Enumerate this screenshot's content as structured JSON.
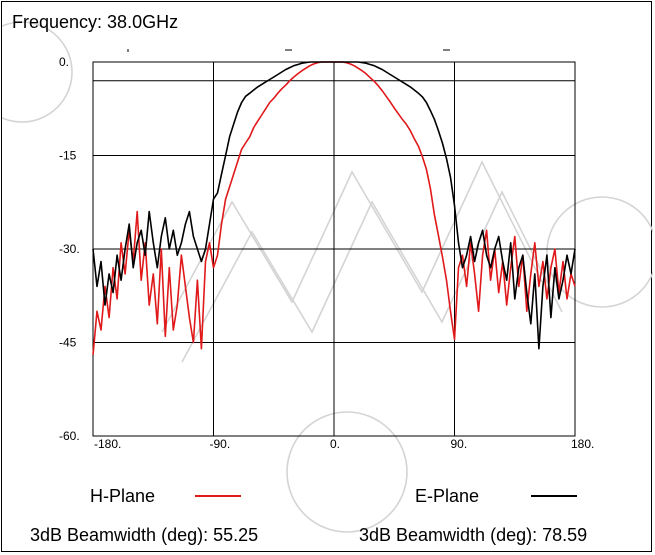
{
  "header": {
    "frequency_label": "Frequency: 38.0GHz"
  },
  "legend": [
    {
      "label": "H-Plane",
      "color": "#e0191b"
    },
    {
      "label": "E-Plane",
      "color": "#000000"
    }
  ],
  "beamwidth": [
    {
      "text": "3dB Beamwidth (deg): 55.25"
    },
    {
      "text": "3dB Beamwidth (deg): 78.59"
    }
  ],
  "chart_data": {
    "type": "line",
    "xlim": [
      -180,
      180
    ],
    "ylim": [
      -60,
      0
    ],
    "xticks": [
      {
        "value": -180,
        "label": "-180."
      },
      {
        "value": -90,
        "label": "-90."
      },
      {
        "value": 0,
        "label": "0."
      },
      {
        "value": 90,
        "label": "90."
      },
      {
        "value": 180,
        "label": "180."
      }
    ],
    "yticks": [
      {
        "value": 0,
        "label": "0."
      },
      {
        "value": -15,
        "label": "-15"
      },
      {
        "value": -30,
        "label": "-30."
      },
      {
        "value": -45,
        "label": "-45"
      },
      {
        "value": -60,
        "label": "-60."
      }
    ],
    "reference_line": -3,
    "grid": true,
    "series": [
      {
        "name": "H-Plane",
        "color": "#e0191b",
        "x": [
          -180,
          -177,
          -174,
          -171,
          -168,
          -165,
          -162,
          -159,
          -156,
          -153,
          -150,
          -147,
          -144,
          -141,
          -138,
          -135,
          -132,
          -129,
          -126,
          -123,
          -120,
          -117,
          -114,
          -111,
          -108,
          -105,
          -102,
          -99,
          -96,
          -93,
          -90,
          -87,
          -84,
          -81,
          -78,
          -75,
          -72,
          -69,
          -66,
          -63,
          -60,
          -57,
          -54,
          -51,
          -48,
          -45,
          -42,
          -39,
          -36,
          -33,
          -30,
          -27,
          -24,
          -21,
          -18,
          -15,
          -12,
          -9,
          -6,
          -3,
          0,
          3,
          6,
          9,
          12,
          15,
          18,
          21,
          24,
          27,
          30,
          33,
          36,
          39,
          42,
          45,
          48,
          51,
          54,
          57,
          60,
          63,
          66,
          69,
          72,
          75,
          78,
          81,
          84,
          87,
          90,
          93,
          96,
          99,
          102,
          105,
          108,
          111,
          114,
          117,
          120,
          123,
          126,
          129,
          132,
          135,
          138,
          141,
          144,
          147,
          150,
          153,
          156,
          159,
          162,
          165,
          168,
          171,
          174,
          177,
          180
        ],
        "y": [
          -47,
          -40,
          -43,
          -36,
          -41,
          -33,
          -38,
          -29,
          -34,
          -27,
          -32,
          -24,
          -35,
          -29,
          -39,
          -34,
          -42,
          -30,
          -44,
          -33,
          -43,
          -39,
          -31,
          -36,
          -41,
          -45,
          -35,
          -46,
          -32,
          -29,
          -33,
          -31,
          -26,
          -22,
          -20,
          -18,
          -16,
          -14,
          -13,
          -12,
          -10.5,
          -9.5,
          -8.5,
          -7.5,
          -6.5,
          -5.8,
          -5,
          -4.3,
          -3.7,
          -3,
          -2.4,
          -1.9,
          -1.4,
          -1,
          -0.6,
          -0.3,
          -0.1,
          0,
          0,
          0,
          0,
          0,
          0,
          -0.1,
          -0.3,
          -0.6,
          -1,
          -1.4,
          -1.9,
          -2.5,
          -3.1,
          -3.8,
          -4.6,
          -5.5,
          -6.4,
          -7.4,
          -8.3,
          -9.2,
          -10,
          -11,
          -12.3,
          -13.5,
          -15.2,
          -17.2,
          -20.3,
          -24.5,
          -27.8,
          -31.2,
          -35,
          -40,
          -44.5,
          -33,
          -31,
          -36,
          -29,
          -34,
          -40,
          -31,
          -27,
          -35,
          -30,
          -37,
          -32,
          -39,
          -33,
          -28,
          -36,
          -31,
          -40,
          -34,
          -29,
          -36,
          -32,
          -38,
          -33,
          -30,
          -37,
          -32,
          -38,
          -34,
          -36
        ]
      },
      {
        "name": "E-Plane",
        "color": "#000000",
        "x": [
          -180,
          -177,
          -174,
          -171,
          -168,
          -165,
          -162,
          -159,
          -156,
          -153,
          -150,
          -147,
          -144,
          -141,
          -138,
          -135,
          -132,
          -129,
          -126,
          -123,
          -120,
          -117,
          -114,
          -111,
          -108,
          -105,
          -102,
          -99,
          -96,
          -93,
          -90,
          -87,
          -84,
          -81,
          -78,
          -75,
          -72,
          -69,
          -66,
          -63,
          -60,
          -57,
          -54,
          -51,
          -48,
          -45,
          -42,
          -39,
          -36,
          -33,
          -30,
          -27,
          -24,
          -21,
          -18,
          -15,
          -12,
          -9,
          -6,
          -3,
          0,
          3,
          6,
          9,
          12,
          15,
          18,
          21,
          24,
          27,
          30,
          33,
          36,
          39,
          42,
          45,
          48,
          51,
          54,
          57,
          60,
          63,
          66,
          69,
          72,
          75,
          78,
          81,
          84,
          87,
          90,
          93,
          96,
          99,
          102,
          105,
          108,
          111,
          114,
          117,
          120,
          123,
          126,
          129,
          132,
          135,
          138,
          141,
          144,
          147,
          150,
          153,
          156,
          159,
          162,
          165,
          168,
          171,
          174,
          177,
          180
        ],
        "y": [
          -30,
          -36,
          -32,
          -39,
          -34,
          -37,
          -31,
          -35,
          -30,
          -26,
          -33,
          -29,
          -27,
          -31,
          -24,
          -29,
          -33,
          -28,
          -25,
          -30,
          -27,
          -31,
          -29,
          -26,
          -24,
          -28,
          -30,
          -32,
          -30,
          -26,
          -22,
          -21,
          -18,
          -15,
          -12,
          -10,
          -8,
          -6.5,
          -5.5,
          -5,
          -4.5,
          -4,
          -3.6,
          -3.2,
          -2.8,
          -2.4,
          -2,
          -1.6,
          -1.2,
          -0.9,
          -0.6,
          -0.4,
          -0.2,
          -0.1,
          0,
          0,
          0,
          0,
          0,
          0,
          0,
          0,
          0,
          0,
          0,
          0,
          0,
          -0.1,
          -0.2,
          -0.4,
          -0.6,
          -0.9,
          -1.2,
          -1.6,
          -2,
          -2.4,
          -2.8,
          -3.2,
          -3.6,
          -4,
          -4.5,
          -5,
          -5.6,
          -6.5,
          -7.8,
          -9.2,
          -11,
          -13,
          -15.5,
          -18.5,
          -23,
          -29,
          -33,
          -31,
          -28,
          -32,
          -29,
          -27,
          -31,
          -33,
          -30,
          -28,
          -32,
          -35,
          -29,
          -38,
          -33,
          -31,
          -37,
          -42,
          -34,
          -46,
          -36,
          -31,
          -41,
          -33,
          -38,
          -35,
          -31,
          -34,
          -30
        ]
      }
    ]
  }
}
